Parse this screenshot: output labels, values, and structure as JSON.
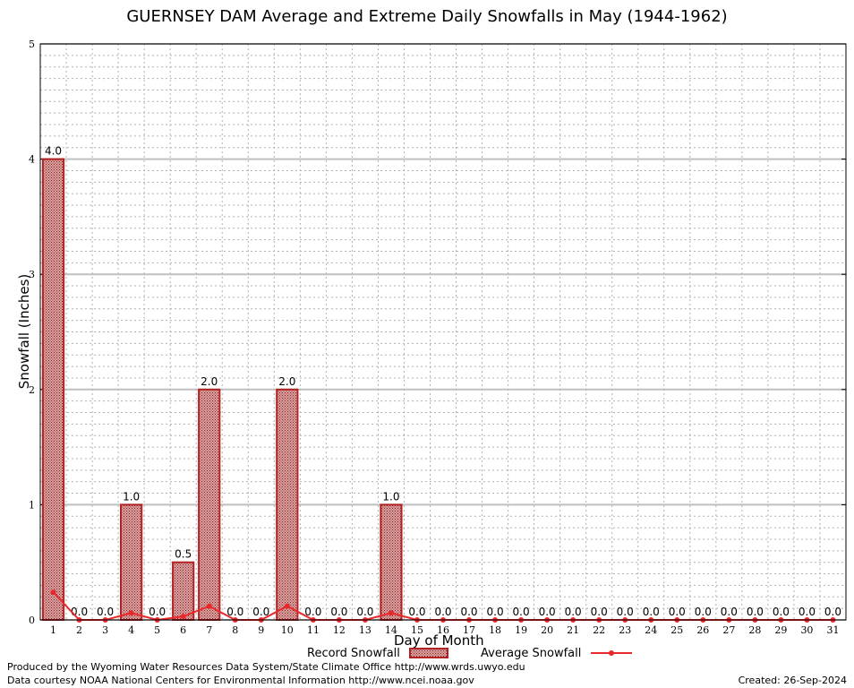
{
  "chart_data": {
    "type": "bar",
    "title": "GUERNSEY DAM Average and Extreme Daily Snowfalls in May (1944-1962)",
    "xlabel": "Day of Month",
    "ylabel": "Snowfall (Inches)",
    "ylim": [
      0,
      5
    ],
    "yticks": [
      "0",
      "1",
      "2",
      "3",
      "4",
      "5"
    ],
    "grid": true,
    "categories": [
      "1",
      "2",
      "3",
      "4",
      "5",
      "6",
      "7",
      "8",
      "9",
      "10",
      "11",
      "12",
      "13",
      "14",
      "15",
      "16",
      "17",
      "18",
      "19",
      "20",
      "21",
      "22",
      "23",
      "24",
      "25",
      "26",
      "27",
      "28",
      "29",
      "30",
      "31"
    ],
    "series": [
      {
        "name": "Record Snowfall",
        "type": "bar",
        "color": "#b22222",
        "values": [
          4.0,
          0,
          0,
          1.0,
          0,
          0.5,
          2.0,
          0,
          0,
          2.0,
          0,
          0,
          0,
          1.0,
          0,
          0,
          0,
          0,
          0,
          0,
          0,
          0,
          0,
          0,
          0,
          0,
          0,
          0,
          0,
          0,
          0
        ],
        "labels": [
          "4.0",
          "0.0",
          "0.0",
          "1.0",
          "0.0",
          "0.5",
          "2.0",
          "0.0",
          "0.0",
          "2.0",
          "0.0",
          "0.0",
          "0.0",
          "1.0",
          "0.0",
          "0.0",
          "0.0",
          "0.0",
          "0.0",
          "0.0",
          "0.0",
          "0.0",
          "0.0",
          "0.0",
          "0.0",
          "0.0",
          "0.0",
          "0.0",
          "0.0",
          "0.0",
          "0.0"
        ]
      },
      {
        "name": "Average Snowfall",
        "type": "line",
        "color": "#e8282b",
        "values": [
          0.24,
          0,
          0,
          0.06,
          0,
          0.03,
          0.12,
          0,
          0,
          0.12,
          0,
          0,
          0,
          0.06,
          0,
          0,
          0,
          0,
          0,
          0,
          0,
          0,
          0,
          0,
          0,
          0,
          0,
          0,
          0,
          0,
          0
        ]
      }
    ],
    "legend": "bottom-center"
  },
  "footer": {
    "produced": "Produced by the Wyoming Water Resources Data System/State Climate Office http://www.wrds.uwyo.edu",
    "courtesy": "Data courtesy NOAA National Centers for Environmental Information http://www.ncei.noaa.gov",
    "created": "Created:  26-Sep-2024"
  }
}
